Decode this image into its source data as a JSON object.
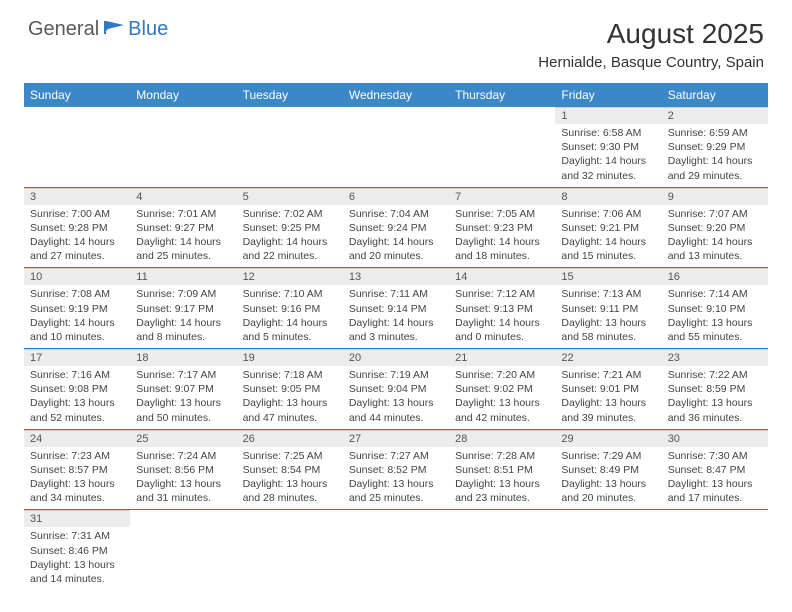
{
  "brand": {
    "part1": "General",
    "part2": "Blue"
  },
  "title": "August 2025",
  "location": "Hernialde, Basque Country, Spain",
  "colors": {
    "header_bg": "#3b87c8",
    "header_text": "#ffffff",
    "daynum_bg": "#ececec",
    "divider": "#2f78c4",
    "brand_blue": "#2f78c4",
    "brand_gray": "#5a5a5a"
  },
  "dayHeaders": [
    "Sunday",
    "Monday",
    "Tuesday",
    "Wednesday",
    "Thursday",
    "Friday",
    "Saturday"
  ],
  "weeks": [
    [
      null,
      null,
      null,
      null,
      null,
      {
        "n": "1",
        "sr": "Sunrise: 6:58 AM",
        "ss": "Sunset: 9:30 PM",
        "dl": "Daylight: 14 hours and 32 minutes."
      },
      {
        "n": "2",
        "sr": "Sunrise: 6:59 AM",
        "ss": "Sunset: 9:29 PM",
        "dl": "Daylight: 14 hours and 29 minutes."
      }
    ],
    [
      {
        "n": "3",
        "sr": "Sunrise: 7:00 AM",
        "ss": "Sunset: 9:28 PM",
        "dl": "Daylight: 14 hours and 27 minutes."
      },
      {
        "n": "4",
        "sr": "Sunrise: 7:01 AM",
        "ss": "Sunset: 9:27 PM",
        "dl": "Daylight: 14 hours and 25 minutes."
      },
      {
        "n": "5",
        "sr": "Sunrise: 7:02 AM",
        "ss": "Sunset: 9:25 PM",
        "dl": "Daylight: 14 hours and 22 minutes."
      },
      {
        "n": "6",
        "sr": "Sunrise: 7:04 AM",
        "ss": "Sunset: 9:24 PM",
        "dl": "Daylight: 14 hours and 20 minutes."
      },
      {
        "n": "7",
        "sr": "Sunrise: 7:05 AM",
        "ss": "Sunset: 9:23 PM",
        "dl": "Daylight: 14 hours and 18 minutes."
      },
      {
        "n": "8",
        "sr": "Sunrise: 7:06 AM",
        "ss": "Sunset: 9:21 PM",
        "dl": "Daylight: 14 hours and 15 minutes."
      },
      {
        "n": "9",
        "sr": "Sunrise: 7:07 AM",
        "ss": "Sunset: 9:20 PM",
        "dl": "Daylight: 14 hours and 13 minutes."
      }
    ],
    [
      {
        "n": "10",
        "sr": "Sunrise: 7:08 AM",
        "ss": "Sunset: 9:19 PM",
        "dl": "Daylight: 14 hours and 10 minutes."
      },
      {
        "n": "11",
        "sr": "Sunrise: 7:09 AM",
        "ss": "Sunset: 9:17 PM",
        "dl": "Daylight: 14 hours and 8 minutes."
      },
      {
        "n": "12",
        "sr": "Sunrise: 7:10 AM",
        "ss": "Sunset: 9:16 PM",
        "dl": "Daylight: 14 hours and 5 minutes."
      },
      {
        "n": "13",
        "sr": "Sunrise: 7:11 AM",
        "ss": "Sunset: 9:14 PM",
        "dl": "Daylight: 14 hours and 3 minutes."
      },
      {
        "n": "14",
        "sr": "Sunrise: 7:12 AM",
        "ss": "Sunset: 9:13 PM",
        "dl": "Daylight: 14 hours and 0 minutes."
      },
      {
        "n": "15",
        "sr": "Sunrise: 7:13 AM",
        "ss": "Sunset: 9:11 PM",
        "dl": "Daylight: 13 hours and 58 minutes."
      },
      {
        "n": "16",
        "sr": "Sunrise: 7:14 AM",
        "ss": "Sunset: 9:10 PM",
        "dl": "Daylight: 13 hours and 55 minutes."
      }
    ],
    [
      {
        "n": "17",
        "sr": "Sunrise: 7:16 AM",
        "ss": "Sunset: 9:08 PM",
        "dl": "Daylight: 13 hours and 52 minutes."
      },
      {
        "n": "18",
        "sr": "Sunrise: 7:17 AM",
        "ss": "Sunset: 9:07 PM",
        "dl": "Daylight: 13 hours and 50 minutes."
      },
      {
        "n": "19",
        "sr": "Sunrise: 7:18 AM",
        "ss": "Sunset: 9:05 PM",
        "dl": "Daylight: 13 hours and 47 minutes."
      },
      {
        "n": "20",
        "sr": "Sunrise: 7:19 AM",
        "ss": "Sunset: 9:04 PM",
        "dl": "Daylight: 13 hours and 44 minutes."
      },
      {
        "n": "21",
        "sr": "Sunrise: 7:20 AM",
        "ss": "Sunset: 9:02 PM",
        "dl": "Daylight: 13 hours and 42 minutes."
      },
      {
        "n": "22",
        "sr": "Sunrise: 7:21 AM",
        "ss": "Sunset: 9:01 PM",
        "dl": "Daylight: 13 hours and 39 minutes."
      },
      {
        "n": "23",
        "sr": "Sunrise: 7:22 AM",
        "ss": "Sunset: 8:59 PM",
        "dl": "Daylight: 13 hours and 36 minutes."
      }
    ],
    [
      {
        "n": "24",
        "sr": "Sunrise: 7:23 AM",
        "ss": "Sunset: 8:57 PM",
        "dl": "Daylight: 13 hours and 34 minutes."
      },
      {
        "n": "25",
        "sr": "Sunrise: 7:24 AM",
        "ss": "Sunset: 8:56 PM",
        "dl": "Daylight: 13 hours and 31 minutes."
      },
      {
        "n": "26",
        "sr": "Sunrise: 7:25 AM",
        "ss": "Sunset: 8:54 PM",
        "dl": "Daylight: 13 hours and 28 minutes."
      },
      {
        "n": "27",
        "sr": "Sunrise: 7:27 AM",
        "ss": "Sunset: 8:52 PM",
        "dl": "Daylight: 13 hours and 25 minutes."
      },
      {
        "n": "28",
        "sr": "Sunrise: 7:28 AM",
        "ss": "Sunset: 8:51 PM",
        "dl": "Daylight: 13 hours and 23 minutes."
      },
      {
        "n": "29",
        "sr": "Sunrise: 7:29 AM",
        "ss": "Sunset: 8:49 PM",
        "dl": "Daylight: 13 hours and 20 minutes."
      },
      {
        "n": "30",
        "sr": "Sunrise: 7:30 AM",
        "ss": "Sunset: 8:47 PM",
        "dl": "Daylight: 13 hours and 17 minutes."
      }
    ],
    [
      {
        "n": "31",
        "sr": "Sunrise: 7:31 AM",
        "ss": "Sunset: 8:46 PM",
        "dl": "Daylight: 13 hours and 14 minutes."
      },
      null,
      null,
      null,
      null,
      null,
      null
    ]
  ]
}
